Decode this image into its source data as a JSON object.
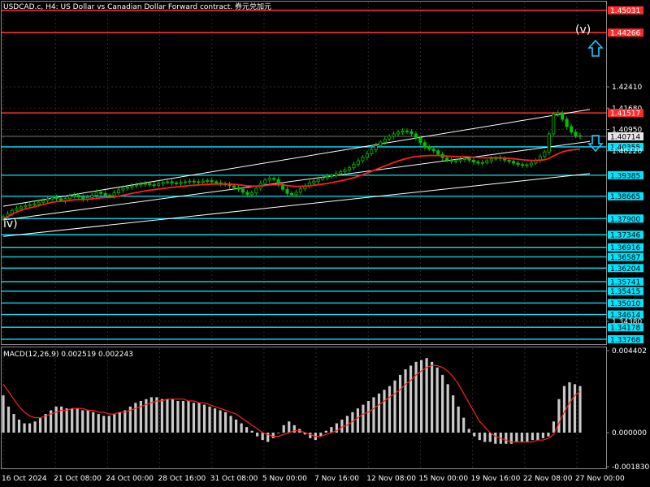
{
  "header": {
    "title": "USDCAD.c, H4:  US Dollar vs Canadian Dollar Forward contract. 券元兑加元"
  },
  "macd_header": {
    "label": "MACD(12,26,9) 0.002519 0.002243"
  },
  "colors": {
    "background": "#000000",
    "bull_candle": "#00c000",
    "bear_candle": "#00c000",
    "ma_line": "#ff1e1e",
    "support_line": "#00e5ff",
    "resistance_line": "#ff2b2b",
    "channel_line": "#ffffff",
    "macd_hist": "#c8c8c8",
    "macd_signal": "#ff2020",
    "arrow": "#1ec8ff"
  },
  "chart_data": [
    {
      "type": "candlestick",
      "symbol": "USDCAD.c",
      "timeframe": "H4",
      "ylim": [
        1.336,
        1.453
      ],
      "x_ticks": [
        "16 Oct 2024",
        "21 Oct 08:00",
        "24 Oct 00:00",
        "28 Oct 16:00",
        "31 Oct 08:00",
        "5 Nov 00:00",
        "7 Nov 16:00",
        "12 Nov 08:00",
        "15 Nov 00:00",
        "19 Nov 16:00",
        "22 Nov 08:00",
        "27 Nov 00:00"
      ],
      "price_levels": [
        {
          "value": 1.45031,
          "kind": "resistance",
          "label": "1.45031"
        },
        {
          "value": 1.44266,
          "kind": "resistance",
          "label": "1.44266"
        },
        {
          "value": 1.4241,
          "kind": "tick",
          "label": "1.42410"
        },
        {
          "value": 1.4168,
          "kind": "tick",
          "label": "1.41680"
        },
        {
          "value": 1.41517,
          "kind": "resistance",
          "label": "1.41517"
        },
        {
          "value": 1.4095,
          "kind": "tick",
          "label": "1.40950"
        },
        {
          "value": 1.40714,
          "kind": "current",
          "label": "1.40714"
        },
        {
          "value": 1.40355,
          "kind": "support",
          "label": "1.40355"
        },
        {
          "value": 1.4022,
          "kind": "tick",
          "label": "1.40220"
        },
        {
          "value": 1.39385,
          "kind": "support",
          "label": "1.39385"
        },
        {
          "value": 1.38665,
          "kind": "support",
          "label": "1.38665"
        },
        {
          "value": 1.379,
          "kind": "support",
          "label": "1.37900"
        },
        {
          "value": 1.37346,
          "kind": "support",
          "label": "1.37346"
        },
        {
          "value": 1.36916,
          "kind": "support",
          "label": "1.36916"
        },
        {
          "value": 1.36587,
          "kind": "support",
          "label": "1.36587"
        },
        {
          "value": 1.36204,
          "kind": "support",
          "label": "1.36204"
        },
        {
          "value": 1.35741,
          "kind": "support",
          "label": "1.35741"
        },
        {
          "value": 1.35415,
          "kind": "support",
          "label": "1.35415"
        },
        {
          "value": 1.3501,
          "kind": "support",
          "label": "1.35010"
        },
        {
          "value": 1.34614,
          "kind": "support",
          "label": "1.34614"
        },
        {
          "value": 1.3438,
          "kind": "tick",
          "label": "1.34380"
        },
        {
          "value": 1.34178,
          "kind": "support",
          "label": "1.34178"
        },
        {
          "value": 1.33768,
          "kind": "support",
          "label": "1.33768"
        }
      ],
      "close_series": [
        1.3796,
        1.3806,
        1.3818,
        1.3824,
        1.383,
        1.3834,
        1.3838,
        1.384,
        1.3846,
        1.3852,
        1.3857,
        1.3862,
        1.3858,
        1.3852,
        1.3858,
        1.3868,
        1.387,
        1.3864,
        1.3856,
        1.3862,
        1.387,
        1.388,
        1.3876,
        1.387,
        1.3868,
        1.3878,
        1.3888,
        1.3894,
        1.3898,
        1.3902,
        1.3905,
        1.3908,
        1.391,
        1.3906,
        1.3904,
        1.391,
        1.3914,
        1.3916,
        1.3912,
        1.391,
        1.3914,
        1.3916,
        1.3918,
        1.3916,
        1.3914,
        1.3918,
        1.392,
        1.3916,
        1.3912,
        1.391,
        1.3906,
        1.3902,
        1.3896,
        1.389,
        1.388,
        1.3872,
        1.3878,
        1.3894,
        1.391,
        1.3922,
        1.3928,
        1.3924,
        1.3908,
        1.389,
        1.3876,
        1.3872,
        1.388,
        1.3892,
        1.3902,
        1.3912,
        1.3918,
        1.3924,
        1.393,
        1.3934,
        1.3938,
        1.3944,
        1.395,
        1.3956,
        1.3964,
        1.3976,
        1.3988,
        1.4,
        1.4012,
        1.4026,
        1.404,
        1.4052,
        1.4062,
        1.4072,
        1.408,
        1.4086,
        1.409,
        1.4088,
        1.408,
        1.4066,
        1.405,
        1.4036,
        1.4028,
        1.4022,
        1.401,
        1.3998,
        1.399,
        1.3986,
        1.3988,
        1.3992,
        1.3996,
        1.399,
        1.3984,
        1.398,
        1.3982,
        1.3988,
        1.3994,
        1.3998,
        1.3996,
        1.399,
        1.3986,
        1.398,
        1.3975,
        1.3972,
        1.3974,
        1.398,
        1.399,
        1.4002,
        1.4018,
        1.408,
        1.4148,
        1.4152,
        1.413,
        1.4105,
        1.4086,
        1.4074,
        1.4071
      ],
      "ma_series": [
        1.379,
        1.3797,
        1.3805,
        1.3812,
        1.3818,
        1.3823,
        1.3827,
        1.383,
        1.3834,
        1.3838,
        1.3842,
        1.3846,
        1.3848,
        1.3849,
        1.385,
        1.3852,
        1.3854,
        1.3855,
        1.3855,
        1.3856,
        1.3857,
        1.3859,
        1.3861,
        1.3862,
        1.3862,
        1.3864,
        1.3867,
        1.387,
        1.3873,
        1.3876,
        1.3879,
        1.3882,
        1.3885,
        1.3887,
        1.3889,
        1.3891,
        1.3893,
        1.3895,
        1.3897,
        1.3898,
        1.39,
        1.3901,
        1.3903,
        1.3904,
        1.3905,
        1.3906,
        1.3907,
        1.3908,
        1.3908,
        1.3908,
        1.3908,
        1.3908,
        1.3907,
        1.3906,
        1.3904,
        1.3902,
        1.3901,
        1.3901,
        1.3902,
        1.3903,
        1.3905,
        1.3906,
        1.3906,
        1.3905,
        1.3903,
        1.3901,
        1.39,
        1.39,
        1.3901,
        1.3902,
        1.3904,
        1.3906,
        1.3908,
        1.391,
        1.3913,
        1.3916,
        1.3919,
        1.3922,
        1.3926,
        1.393,
        1.3935,
        1.394,
        1.3946,
        1.3952,
        1.3958,
        1.3964,
        1.397,
        1.3976,
        1.3982,
        1.3987,
        1.3992,
        1.3996,
        1.4,
        1.4002,
        1.4004,
        1.4005,
        1.4006,
        1.4006,
        1.4006,
        1.4005,
        1.4004,
        1.4003,
        1.4002,
        1.4002,
        1.4002,
        1.4001,
        1.4,
        1.3999,
        1.3998,
        1.3998,
        1.3998,
        1.3998,
        1.3998,
        1.3997,
        1.3996,
        1.3995,
        1.3993,
        1.3991,
        1.399,
        1.3989,
        1.3989,
        1.399,
        1.3991,
        1.3996,
        1.4004,
        1.4012,
        1.4018,
        1.4022,
        1.4025,
        1.4027,
        1.4028
      ]
    },
    {
      "type": "bar",
      "name": "MACD(12,26,9)",
      "ylim": [
        -0.00183,
        0.004402
      ],
      "y_ticks": [
        0.004402,
        0.0,
        -0.00183
      ],
      "y_tick_labels": [
        "0.004402",
        "0.000000",
        "-0.001830"
      ],
      "histogram": [
        0.002,
        0.0014,
        0.001,
        0.0007,
        0.0005,
        0.0005,
        0.0006,
        0.0008,
        0.001,
        0.0012,
        0.0014,
        0.0014,
        0.0013,
        0.0013,
        0.0013,
        0.0012,
        0.0012,
        0.0011,
        0.001,
        0.0009,
        0.0009,
        0.001,
        0.0011,
        0.0012,
        0.0014,
        0.0016,
        0.0017,
        0.0018,
        0.0019,
        0.0019,
        0.0018,
        0.0018,
        0.0018,
        0.0017,
        0.0017,
        0.0017,
        0.0016,
        0.0016,
        0.0015,
        0.0014,
        0.0013,
        0.0012,
        0.0011,
        0.0009,
        0.0007,
        0.0005,
        0.0003,
        0.0001,
        -0.0002,
        -0.0004,
        -0.0005,
        -0.0003,
        0.0,
        0.0004,
        0.0006,
        0.0004,
        0.0002,
        -0.0001,
        -0.0003,
        -0.0004,
        -0.0002,
        0.0001,
        0.0003,
        0.0005,
        0.0007,
        0.0009,
        0.0011,
        0.0013,
        0.0015,
        0.0017,
        0.0019,
        0.0021,
        0.0023,
        0.0025,
        0.0028,
        0.0031,
        0.0034,
        0.0036,
        0.0038,
        0.0039,
        0.004,
        0.0038,
        0.0035,
        0.0031,
        0.0026,
        0.002,
        0.0014,
        0.0008,
        0.0002,
        -0.0002,
        -0.0004,
        -0.0005,
        -0.0005,
        -0.0006,
        -0.0006,
        -0.0006,
        -0.0006,
        -0.0005,
        -0.0005,
        -0.0005,
        -0.0004,
        -0.0004,
        -0.0003,
        -0.0002,
        0.0006,
        0.0018,
        0.0025,
        0.0027,
        0.0026,
        0.0025
      ],
      "signal": [
        0.0026,
        0.0022,
        0.0018,
        0.0014,
        0.0011,
        0.0009,
        0.0008,
        0.0008,
        0.0009,
        0.001,
        0.0011,
        0.0012,
        0.0012,
        0.0013,
        0.0013,
        0.0013,
        0.0012,
        0.0012,
        0.0011,
        0.0011,
        0.001,
        0.001,
        0.0011,
        0.0011,
        0.0012,
        0.0013,
        0.0014,
        0.0015,
        0.0016,
        0.0017,
        0.0017,
        0.0018,
        0.0018,
        0.0018,
        0.0018,
        0.0017,
        0.0017,
        0.0016,
        0.0016,
        0.0015,
        0.0014,
        0.0013,
        0.0012,
        0.0011,
        0.001,
        0.0008,
        0.0006,
        0.0004,
        0.0002,
        0.0,
        -0.0001,
        -0.0002,
        -0.0002,
        -0.0001,
        0.0,
        0.0001,
        0.0001,
        0.0,
        -0.0001,
        -0.0002,
        -0.0002,
        -0.0001,
        0.0,
        0.0001,
        0.0003,
        0.0004,
        0.0006,
        0.0008,
        0.001,
        0.0011,
        0.0013,
        0.0015,
        0.0017,
        0.0019,
        0.0021,
        0.0023,
        0.0026,
        0.0028,
        0.0031,
        0.0033,
        0.0035,
        0.0036,
        0.0036,
        0.0035,
        0.0033,
        0.003,
        0.0026,
        0.0021,
        0.0016,
        0.0011,
        0.0006,
        0.0003,
        0.0,
        -0.0002,
        -0.0003,
        -0.0004,
        -0.0005,
        -0.0005,
        -0.0005,
        -0.0005,
        -0.0005,
        -0.0004,
        -0.0004,
        -0.0003,
        -0.0001,
        0.0005,
        0.0011,
        0.0016,
        0.002,
        0.0022
      ]
    }
  ],
  "annotations": {
    "wave_top": "(v)",
    "wave_left": "iv)"
  }
}
